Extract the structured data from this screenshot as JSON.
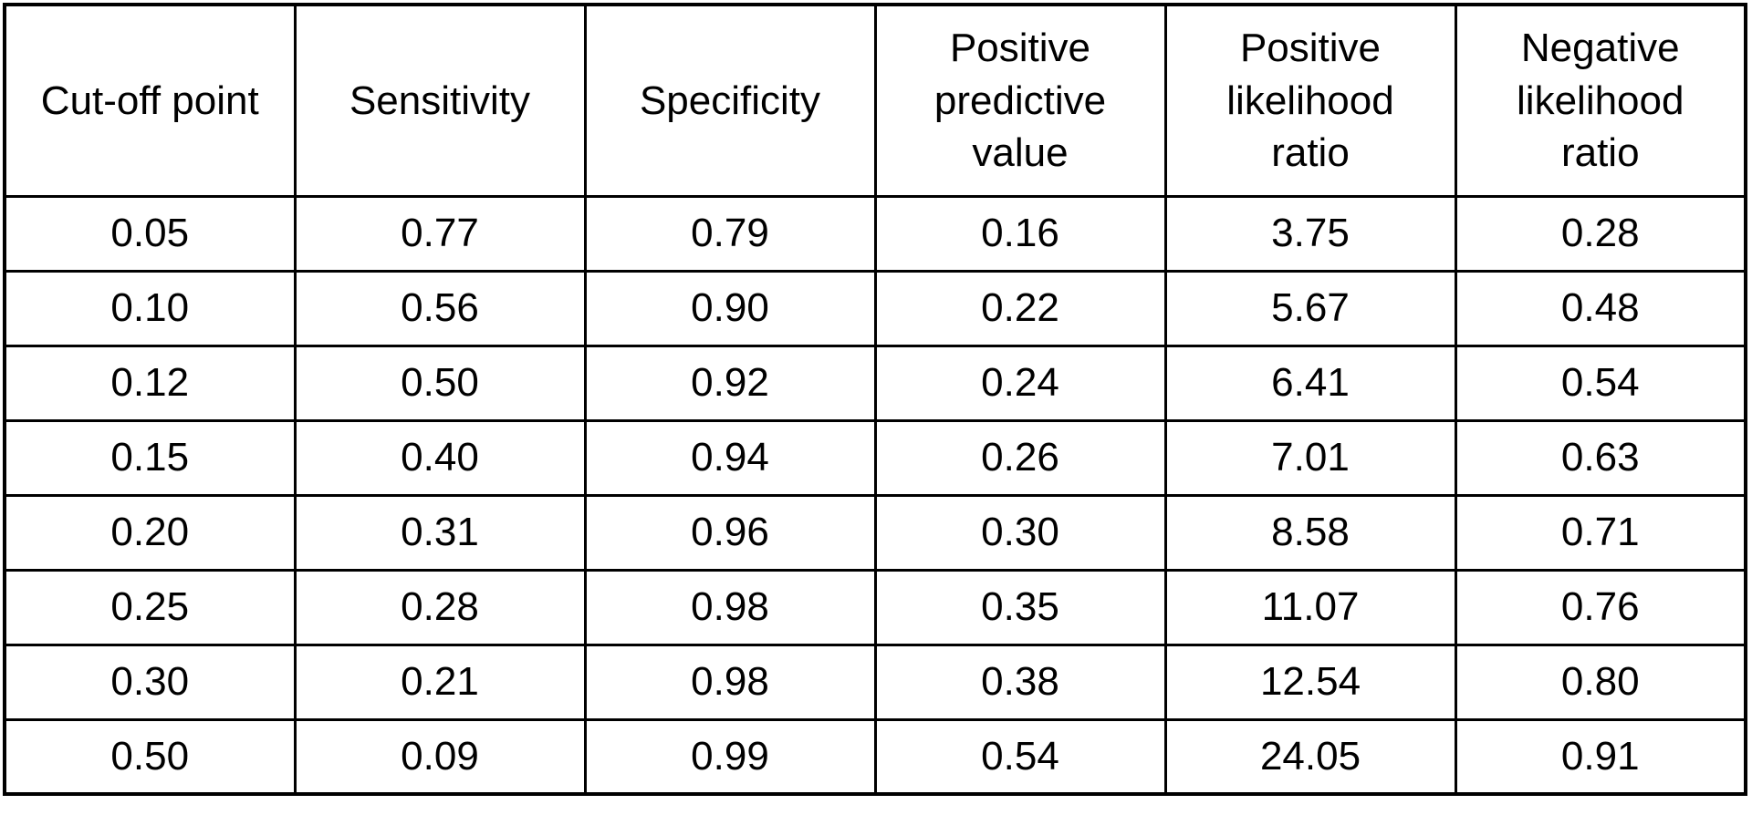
{
  "table": {
    "headers": [
      "Cut-off point",
      "Sensitivity",
      "Specificity",
      "Positive\npredictive\nvalue",
      "Positive\nlikelihood\nratio",
      "Negative\nlikelihood\nratio"
    ],
    "rows": [
      [
        "0.05",
        "0.77",
        "0.79",
        "0.16",
        "3.75",
        "0.28"
      ],
      [
        "0.10",
        "0.56",
        "0.90",
        "0.22",
        "5.67",
        "0.48"
      ],
      [
        "0.12",
        "0.50",
        "0.92",
        "0.24",
        "6.41",
        "0.54"
      ],
      [
        "0.15",
        "0.40",
        "0.94",
        "0.26",
        "7.01",
        "0.63"
      ],
      [
        "0.20",
        "0.31",
        "0.96",
        "0.30",
        "8.58",
        "0.71"
      ],
      [
        "0.25",
        "0.28",
        "0.98",
        "0.35",
        "11.07",
        "0.76"
      ],
      [
        "0.30",
        "0.21",
        "0.98",
        "0.38",
        "12.54",
        "0.80"
      ],
      [
        "0.50",
        "0.09",
        "0.99",
        "0.54",
        "24.05",
        "0.91"
      ]
    ],
    "colors": {
      "border": "#000000",
      "text": "#000000",
      "background": "#ffffff"
    }
  },
  "chart_data": {
    "type": "table",
    "columns": [
      "Cut-off point",
      "Sensitivity",
      "Specificity",
      "Positive predictive value",
      "Positive likelihood ratio",
      "Negative likelihood ratio"
    ],
    "rows": [
      [
        0.05,
        0.77,
        0.79,
        0.16,
        3.75,
        0.28
      ],
      [
        0.1,
        0.56,
        0.9,
        0.22,
        5.67,
        0.48
      ],
      [
        0.12,
        0.5,
        0.92,
        0.24,
        6.41,
        0.54
      ],
      [
        0.15,
        0.4,
        0.94,
        0.26,
        7.01,
        0.63
      ],
      [
        0.2,
        0.31,
        0.96,
        0.3,
        8.58,
        0.71
      ],
      [
        0.25,
        0.28,
        0.98,
        0.35,
        11.07,
        0.76
      ],
      [
        0.3,
        0.21,
        0.98,
        0.38,
        12.54,
        0.8
      ],
      [
        0.5,
        0.09,
        0.99,
        0.54,
        24.05,
        0.91
      ]
    ]
  }
}
